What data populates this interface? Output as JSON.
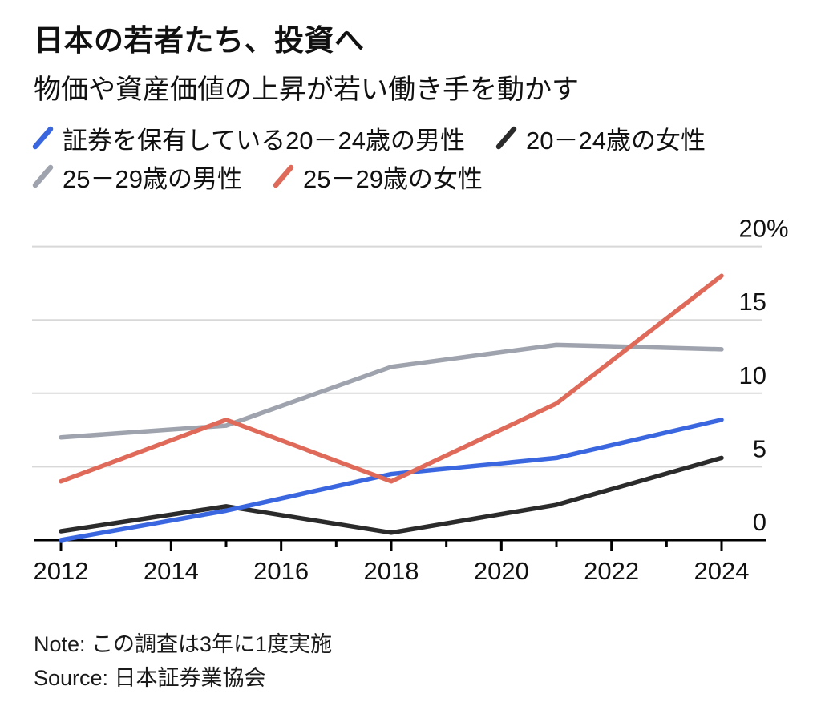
{
  "header": {
    "title": "日本の若者たち、投資へ",
    "subtitle": "物価や資産価値の上昇が若い働き手を動かす"
  },
  "chart_data": {
    "type": "line",
    "x": [
      2012,
      2015,
      2018,
      2021,
      2024
    ],
    "series": [
      {
        "name": "証券を保有している20－24歳の男性",
        "color": "#3a67e0",
        "values": [
          0,
          2,
          4.5,
          5.6,
          8.2
        ]
      },
      {
        "name": "20－24歳の女性",
        "color": "#2b2b2b",
        "values": [
          0.6,
          2.3,
          0.5,
          2.4,
          5.6
        ]
      },
      {
        "name": "25－29歳の男性",
        "color": "#9ea3ad",
        "values": [
          7,
          7.8,
          11.8,
          13.3,
          13
        ]
      },
      {
        "name": "25－29歳の女性",
        "color": "#e06a5a",
        "values": [
          4,
          8.2,
          4,
          9.3,
          18
        ]
      }
    ],
    "title": "日本の若者たち、投資へ",
    "subtitle": "物価や資産価値の上昇が若い働き手を動かす",
    "xlabel": "",
    "ylabel": "",
    "ylim": [
      0,
      20
    ],
    "yticks": [
      0,
      5,
      10,
      15,
      20
    ],
    "ytick_labels": [
      "0",
      "5",
      "10",
      "15",
      "20%"
    ],
    "xticks_labeled": [
      2012,
      2014,
      2016,
      2018,
      2020,
      2022,
      2024
    ],
    "xticks_minor": [
      2013,
      2015,
      2017,
      2019,
      2021,
      2023
    ],
    "xrange": [
      2012,
      2024
    ],
    "grid": "horizontal",
    "legend_position": "top",
    "note_frequency": "survey every 3 years",
    "colors": {
      "gridline": "#d8d8d8",
      "axis": "#000000",
      "text": "#111111"
    }
  },
  "footer": {
    "note": "Note: この調査は3年に1度実施",
    "source": "Source: 日本証券業協会"
  }
}
